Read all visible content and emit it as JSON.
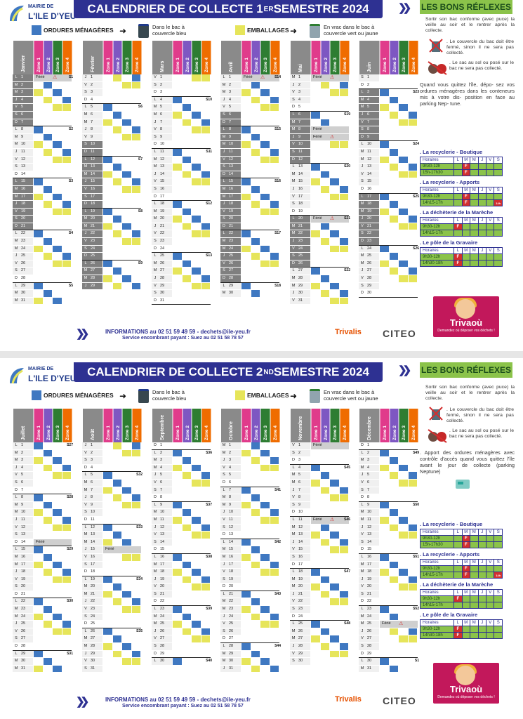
{
  "colors": {
    "ordures": "#3f78c1",
    "emballages": "#e6e55a",
    "zone1": "#e03b8b",
    "zone2": "#7e57c2",
    "zone3": "#2e7d32",
    "zone4": "#ef6c00",
    "title_bg": "#2e3192",
    "reflex_bg": "#8bc34a"
  },
  "legend": {
    "ordures": "ORDURES MÉNAGÈRES",
    "ordures_note1": "Dans le bac à",
    "ordures_note2": "couvercle bleu",
    "emballages": "EMBALLAGES",
    "emb_note1": "En vrac dans le bac à",
    "emb_note2": "couvercle vert ou jaune"
  },
  "logo": {
    "line1": "MAIRIE DE",
    "line2": "L'ILE D'YEU"
  },
  "reflexes_title": "LES BONS RÉFLEXES",
  "footer": {
    "info": "INFORMATIONS au 02 51 59 49 59 - dechets@ile-yeu.fr",
    "encombrant": "Service encombrant payant : Suez au 02 51 58 78 57",
    "trivalis": "Trivalis",
    "citeo": "CITEO"
  },
  "zone_labels": [
    "Zone 1",
    "Zone 2",
    "Zone 3",
    "Zone 4"
  ],
  "hours_header": [
    "Horaires",
    "L",
    "M",
    "M",
    "J",
    "V",
    "S"
  ],
  "top": {
    "title": "CALENDRIER DE COLLECTE 1",
    "title_sup": "ER",
    "title_end": " SEMESTRE 2024",
    "side": {
      "p1": "Sortir son bac conforme (avec puce) la veille au soir et le rentrer après la collecte.",
      "p2": ". Le couvercle du bac doit être fermé, sinon il ne sera pas collecté.",
      "p3": ". Le sac au sol ou posé sur le bac ne sera pas collecté.",
      "p4": "Quand vous quittez l'île, dépo- sez vos ordures ménagères dans les conteneurs mis à votre dis- position en face au parking Nep- tune.",
      "s1": ". La recyclerie - Boutique",
      "s1h": [
        "9h30-12h",
        "15h-17h30"
      ],
      "s2": ". La recyclerie - Apports",
      "s2h": [
        "9h30-12h",
        "14h15-17h"
      ],
      "s3": ". La déchèterie de la Marèche",
      "s3h": [
        "9h30-12h",
        "14h15-17h"
      ],
      "s4": ". Le pôle de la Gravaire",
      "s4h": [
        "9h30-12h",
        "14h30-18h"
      ],
      "note_s": "14h",
      "trivaou": "Trivaoù",
      "trivaou_sub": "Demandez où déposer vos déchets !"
    }
  },
  "bottom": {
    "title": "CALENDRIER DE COLLECTE 2",
    "title_sup": "ND",
    "title_end": " SEMESTRE 2024",
    "side": {
      "p1": "Sortir son bac conforme (avec puce) la veille au soir et le rentrer après la collecte.",
      "p2": ". Le couvercle du bac doit être fermé, sinon il ne sera pas collecté.",
      "p3": ". Le sac au sol ou posé sur le bac ne sera pas collecté.",
      "p4": ". Apport des ordures ménagères avec contrôle d'accès quand vous quittez l'île avant le jour de collecte (parking Neptune)",
      "s1": ". La recyclerie - Boutique",
      "s1h": [
        "9h30-12h",
        "15h-17h30"
      ],
      "s2": ". La recyclerie - Apports",
      "s2h": [
        "9h30-12h",
        "14h15-17h"
      ],
      "s3": ". La déchèterie de la Marèche",
      "s3h": [
        "9h30-12h",
        "14h15-17h"
      ],
      "s4": ". Le pôle de la Gravaire",
      "s4h": [
        "9h30-12h",
        "14h30-18h"
      ],
      "note_s": "14h",
      "trivaou": "Trivaoù",
      "trivaou_sub": "Demandez où déposer vos déchets !"
    }
  },
  "months": [
    {
      "name": "Janvier",
      "year": 2024,
      "m": 0,
      "days": 31,
      "ferie": {
        "1": "Férié"
      },
      "alert": [
        1
      ],
      "week": {
        "1": "S1",
        "8": "S2",
        "15": "S3",
        "22": "S4",
        "29": "S5"
      },
      "vac": [
        1,
        2,
        3,
        4,
        5,
        6,
        7,
        8,
        9,
        10,
        11,
        12,
        13,
        14,
        15,
        16,
        17,
        18,
        19,
        20,
        21,
        22,
        23,
        24,
        25,
        26,
        27,
        28,
        29,
        30,
        31
      ],
      "vacOff": [
        8,
        9,
        10,
        11,
        12,
        13,
        14,
        22,
        23,
        24,
        25,
        26,
        27,
        28,
        29,
        30,
        31
      ]
    },
    {
      "name": "Février",
      "year": 2024,
      "m": 1,
      "days": 29,
      "ferie": {},
      "alert": [],
      "week": {
        "5": "S6",
        "12": "S7",
        "19": "S8",
        "26": "S9"
      },
      "vacOn": [
        10,
        11,
        12,
        13,
        14,
        15,
        16,
        17,
        18,
        19,
        20,
        21,
        22,
        23,
        24,
        25,
        26,
        27,
        28,
        29
      ]
    },
    {
      "name": "Mars",
      "year": 2024,
      "m": 2,
      "days": 31,
      "ferie": {},
      "alert": [],
      "week": {
        "4": "S10",
        "11": "S11",
        "18": "S12",
        "25": "S13"
      },
      "vacOn": []
    },
    {
      "name": "Avril",
      "year": 2024,
      "m": 3,
      "days": 30,
      "ferie": {
        "1": "Férié"
      },
      "alert": [
        1
      ],
      "week": {
        "1": "S14",
        "8": "S15",
        "15": "S16",
        "22": "S17",
        "29": "S18"
      },
      "vacOn": [
        6,
        7,
        8,
        9,
        10,
        11,
        12,
        13,
        14,
        15,
        16,
        17,
        18,
        19,
        20,
        21,
        22,
        23,
        24,
        25,
        26,
        27,
        28
      ]
    },
    {
      "name": "Mai",
      "year": 2024,
      "m": 4,
      "days": 31,
      "ferie": {
        "1": "Férié",
        "8": "Férié",
        "9": "Férié",
        "20": "Férié"
      },
      "alert": [
        1,
        9,
        20
      ],
      "week": {
        "6": "S19",
        "13": "S20",
        "20": "S21",
        "27": "S22"
      },
      "vacOn": [
        6,
        7,
        8,
        9,
        10,
        11,
        12,
        20,
        21,
        22,
        23,
        24,
        25,
        26
      ]
    },
    {
      "name": "Juin",
      "year": 2024,
      "m": 5,
      "days": 30,
      "ferie": {},
      "alert": [],
      "week": {
        "3": "S23",
        "10": "S24",
        "17": "S25",
        "24": "S26"
      },
      "vacOn": [
        3,
        4,
        5,
        6,
        7,
        8,
        9,
        17,
        18,
        19,
        20,
        21,
        22,
        23
      ]
    },
    {
      "name": "Juillet",
      "year": 2024,
      "m": 6,
      "days": 31,
      "ferie": {
        "14": "Férié"
      },
      "alert": [],
      "week": {
        "1": "S27",
        "8": "S28",
        "15": "S29",
        "22": "S30",
        "29": "S31"
      },
      "vacOn": []
    },
    {
      "name": "Août",
      "year": 2024,
      "m": 7,
      "days": 31,
      "ferie": {
        "15": "Férié"
      },
      "alert": [],
      "week": {
        "5": "S32",
        "12": "S33",
        "19": "S34",
        "26": "S35"
      },
      "vacOn": []
    },
    {
      "name": "Septembre",
      "year": 2024,
      "m": 8,
      "days": 30,
      "ferie": {},
      "alert": [],
      "week": {
        "2": "S36",
        "9": "S37",
        "16": "S38",
        "23": "S39",
        "30": "S40"
      },
      "vacOn": []
    },
    {
      "name": "Octobre",
      "year": 2024,
      "m": 9,
      "days": 31,
      "ferie": {},
      "alert": [],
      "week": {
        "7": "S41",
        "14": "S42",
        "21": "S43",
        "28": "S44"
      },
      "vacOn": []
    },
    {
      "name": "Novembre",
      "year": 2024,
      "m": 10,
      "days": 30,
      "ferie": {
        "1": "Férié",
        "11": "Férié"
      },
      "alert": [
        11
      ],
      "week": {
        "4": "S45",
        "11": "S46",
        "18": "S47",
        "25": "S48"
      },
      "vacOn": []
    },
    {
      "name": "Décembre",
      "year": 2024,
      "m": 11,
      "days": 31,
      "ferie": {
        "25": "Férié"
      },
      "alert": [
        25
      ],
      "week": {
        "2": "S49",
        "9": "S50",
        "16": "S51",
        "23": "S52",
        "30": "S1"
      },
      "vacOn": []
    }
  ]
}
